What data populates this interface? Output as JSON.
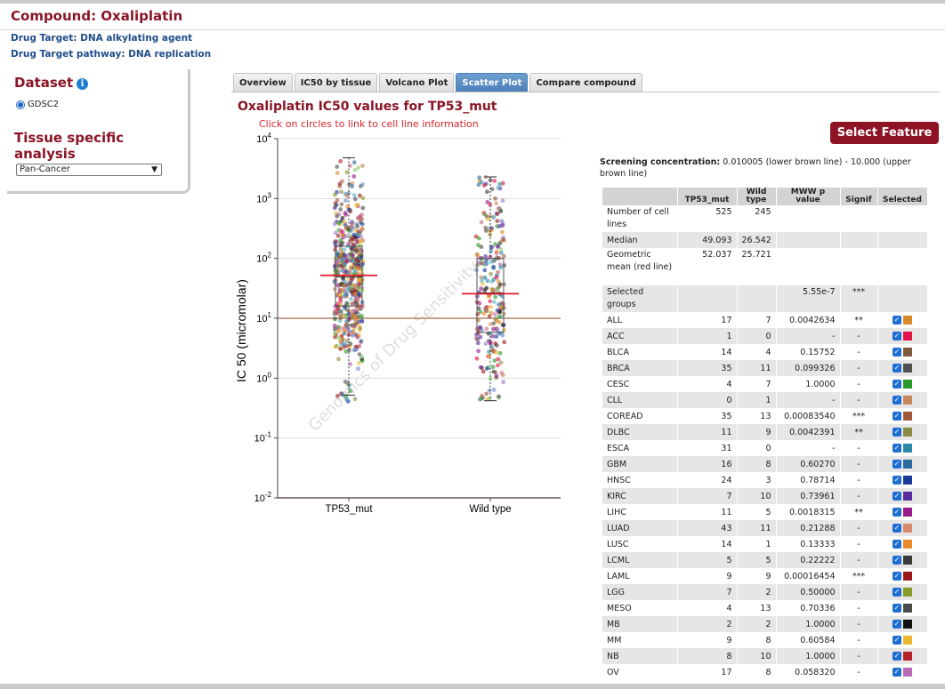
{
  "header": {
    "title": "Compound: Oxaliplatin",
    "drug_target": "Drug Target: DNA alkylating agent",
    "drug_pathway": "Drug Target pathway: DNA replication"
  },
  "sidebar": {
    "dataset_title": "Dataset",
    "info_icon": "info-icon",
    "dataset_option": "GDSC2",
    "tissue_title": "Tissue specific analysis",
    "tissue_select": "Pan-Cancer"
  },
  "tabs": [
    {
      "label": "Overview",
      "active": false
    },
    {
      "label": "IC50 by tissue",
      "active": false
    },
    {
      "label": "Volcano Plot",
      "active": false
    },
    {
      "label": "Scatter Plot",
      "active": true
    },
    {
      "label": "Compare compound",
      "active": false
    }
  ],
  "plot": {
    "title": "Oxaliplatin IC50 values for TP53_mut",
    "hint": "Click on circles to link to cell line information",
    "watermark": "Genomics of Drug Sensitivity"
  },
  "chart_data": {
    "type": "scatter",
    "ylabel": "IC 50 (micromolar)",
    "yscale": "log",
    "ylim": [
      0.01,
      10000
    ],
    "y_ticks": [
      {
        "value": 0.01,
        "base": "10",
        "exp": "-2"
      },
      {
        "value": 0.1,
        "base": "10",
        "exp": "-1"
      },
      {
        "value": 1,
        "base": "10",
        "exp": "0"
      },
      {
        "value": 10,
        "base": "10",
        "exp": "1"
      },
      {
        "value": 100,
        "base": "10",
        "exp": "2"
      },
      {
        "value": 1000,
        "base": "10",
        "exp": "3"
      },
      {
        "value": 10000,
        "base": "10",
        "exp": "4"
      }
    ],
    "grid": true,
    "groups": [
      {
        "name": "TP53_mut",
        "n": 525,
        "geo_mean": 52.037,
        "median": 49.093,
        "q1": 16,
        "q3": 160,
        "whisker_low": 0.52,
        "whisker_high": 4800,
        "min": 0.4,
        "max": 4800
      },
      {
        "name": "Wild type",
        "n": 245,
        "geo_mean": 25.721,
        "median": 26.542,
        "q1": 5.8,
        "q3": 100,
        "whisker_low": 0.42,
        "whisker_high": 2300,
        "min": 0.42,
        "max": 2300
      }
    ],
    "screening_lines": [
      0.010005,
      10.0
    ],
    "colors": {
      "box": "#555555",
      "geo_mean_line": "#e0182b",
      "screening_line": "#b0836a"
    }
  },
  "select_feature_label": "Select Feature",
  "screening": {
    "label": "Screening concentration:",
    "text": "0.010005 (lower brown line) - 10.000 (upper brown line)"
  },
  "table": {
    "headers": [
      "",
      "TP53_mut",
      "Wild type",
      "MWW p value",
      "Signif",
      "Selected"
    ],
    "summary_rows": [
      {
        "label": "Number of cell lines",
        "mut": "525",
        "wt": "245",
        "p": "",
        "sig": ""
      },
      {
        "label": "Median",
        "mut": "49.093",
        "wt": "26.542",
        "p": "",
        "sig": ""
      },
      {
        "label": "Geometric mean (red line)",
        "mut": "52.037",
        "wt": "25.721",
        "p": "",
        "sig": ""
      },
      {
        "label": "Selected groups",
        "mut": "",
        "wt": "",
        "p": "5.55e-7",
        "sig": "***"
      }
    ],
    "tissue_rows": [
      {
        "label": "ALL",
        "mut": "17",
        "wt": "7",
        "p": "0.0042634",
        "sig": "**",
        "color": "#d88a2a"
      },
      {
        "label": "ACC",
        "mut": "1",
        "wt": "0",
        "p": "-",
        "sig": "-",
        "color": "#e2134a"
      },
      {
        "label": "BLCA",
        "mut": "14",
        "wt": "4",
        "p": "0.15752",
        "sig": "-",
        "color": "#7d5a3a"
      },
      {
        "label": "BRCA",
        "mut": "35",
        "wt": "11",
        "p": "0.099326",
        "sig": "-",
        "color": "#505050"
      },
      {
        "label": "CESC",
        "mut": "4",
        "wt": "7",
        "p": "1.0000",
        "sig": "-",
        "color": "#2a9a2a"
      },
      {
        "label": "CLL",
        "mut": "0",
        "wt": "1",
        "p": "-",
        "sig": "-",
        "color": "#c8875a"
      },
      {
        "label": "COREAD",
        "mut": "35",
        "wt": "13",
        "p": "0.00083540",
        "sig": "***",
        "color": "#a05a3a"
      },
      {
        "label": "DLBC",
        "mut": "11",
        "wt": "9",
        "p": "0.0042391",
        "sig": "**",
        "color": "#8c8a44"
      },
      {
        "label": "ESCA",
        "mut": "31",
        "wt": "0",
        "p": "-",
        "sig": "-",
        "color": "#2a8aaa"
      },
      {
        "label": "GBM",
        "mut": "16",
        "wt": "8",
        "p": "0.60270",
        "sig": "-",
        "color": "#2a6aa0"
      },
      {
        "label": "HNSC",
        "mut": "24",
        "wt": "3",
        "p": "0.78714",
        "sig": "-",
        "color": "#1a3a9a"
      },
      {
        "label": "KIRC",
        "mut": "7",
        "wt": "10",
        "p": "0.73961",
        "sig": "-",
        "color": "#5a2aa0"
      },
      {
        "label": "LIHC",
        "mut": "11",
        "wt": "5",
        "p": "0.0018315",
        "sig": "**",
        "color": "#9a1a8a"
      },
      {
        "label": "LUAD",
        "mut": "43",
        "wt": "11",
        "p": "0.21288",
        "sig": "-",
        "color": "#d88a6a"
      },
      {
        "label": "LUSC",
        "mut": "14",
        "wt": "1",
        "p": "0.13333",
        "sig": "-",
        "color": "#ea8a2a"
      },
      {
        "label": "LCML",
        "mut": "5",
        "wt": "5",
        "p": "0.22222",
        "sig": "-",
        "color": "#3a3a3a"
      },
      {
        "label": "LAML",
        "mut": "9",
        "wt": "9",
        "p": "0.00016454",
        "sig": "***",
        "color": "#9a1a1a"
      },
      {
        "label": "LGG",
        "mut": "7",
        "wt": "2",
        "p": "0.50000",
        "sig": "-",
        "color": "#8a9a2a"
      },
      {
        "label": "MESO",
        "mut": "4",
        "wt": "13",
        "p": "0.70336",
        "sig": "-",
        "color": "#4a4a4a"
      },
      {
        "label": "MB",
        "mut": "2",
        "wt": "2",
        "p": "1.0000",
        "sig": "-",
        "color": "#111111"
      },
      {
        "label": "MM",
        "mut": "9",
        "wt": "8",
        "p": "0.60584",
        "sig": "-",
        "color": "#eab82a"
      },
      {
        "label": "NB",
        "mut": "8",
        "wt": "10",
        "p": "1.0000",
        "sig": "-",
        "color": "#b8222a"
      },
      {
        "label": "OV",
        "mut": "17",
        "wt": "8",
        "p": "0.058320",
        "sig": "-",
        "color": "#b86ab8"
      }
    ]
  }
}
